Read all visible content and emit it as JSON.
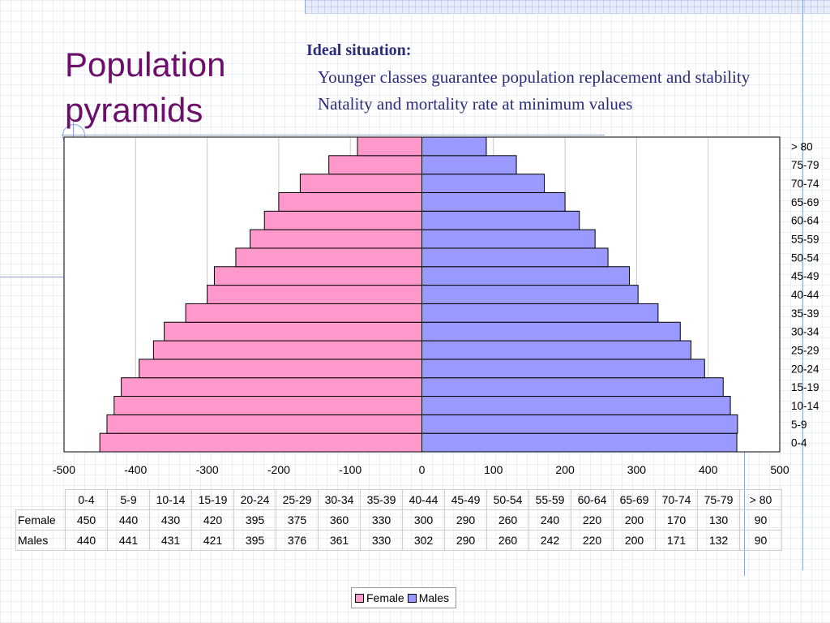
{
  "slide": {
    "title": "Population pyramids",
    "subtitle_heading": "Ideal situation:",
    "bullets": [
      "Younger classes guarantee population replacement and stability",
      "Natality and mortality rate at minimum values"
    ],
    "bullet_glyph": ""
  },
  "colors": {
    "female": "#ff99cc",
    "males": "#9999ff",
    "title": "#6b0f6b",
    "subtitle": "#2c2c7a"
  },
  "chart_data": {
    "type": "bar",
    "orientation": "horizontal",
    "categories": [
      "0-4",
      "5-9",
      "10-14",
      "15-19",
      "20-24",
      "25-29",
      "30-34",
      "35-39",
      "40-44",
      "45-49",
      "50-54",
      "55-59",
      "60-64",
      "65-69",
      "70-74",
      "75-79",
      "> 80"
    ],
    "series": [
      {
        "name": "Female",
        "values": [
          450,
          440,
          430,
          420,
          395,
          375,
          360,
          330,
          300,
          290,
          260,
          240,
          220,
          200,
          170,
          130,
          90
        ],
        "plotted_as": "negative"
      },
      {
        "name": "Males",
        "values": [
          440,
          441,
          431,
          421,
          395,
          376,
          361,
          330,
          302,
          290,
          260,
          242,
          220,
          200,
          171,
          132,
          90
        ]
      }
    ],
    "xlim": [
      -500,
      500
    ],
    "xticks": [
      "-500",
      "-400",
      "-300",
      "-200",
      "-100",
      "0",
      "100",
      "200",
      "300",
      "400",
      "500"
    ],
    "grid": "vertical",
    "legend": "bottom",
    "data_table": true
  }
}
